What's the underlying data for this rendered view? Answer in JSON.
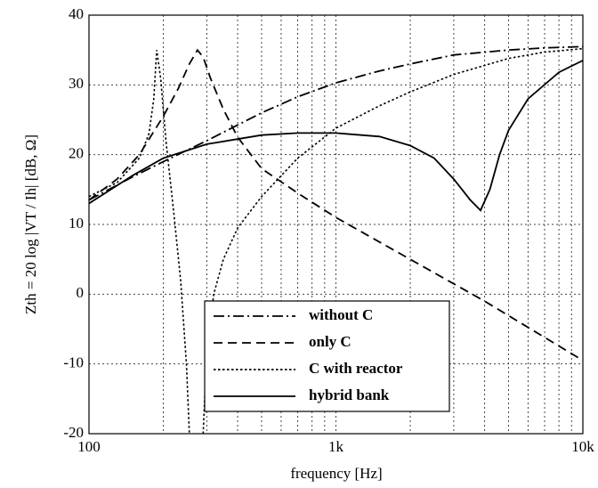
{
  "chart_data": {
    "type": "line",
    "xlabel": "frequency [Hz]",
    "ylabel": "Zth = 20 log |VT / Ih| [dB, Ω]",
    "xscale": "log",
    "xlim": [
      100,
      10000
    ],
    "ylim": [
      -20,
      40
    ],
    "xticks": [
      100,
      {
        "value": 1000,
        "label": "1k"
      },
      {
        "value": 10000,
        "label": "10k"
      }
    ],
    "xminorticks": [
      200,
      300,
      400,
      500,
      600,
      700,
      800,
      900,
      2000,
      3000,
      4000,
      5000,
      6000,
      7000,
      8000,
      9000
    ],
    "yticks": [
      -20,
      -10,
      0,
      10,
      20,
      30,
      40
    ],
    "grid": true,
    "legend_loc": "lower center",
    "series": [
      {
        "name": "without C",
        "color": "#000000",
        "linestyle": "dashdot",
        "x": [
          100,
          150,
          200,
          300,
          500,
          700,
          1000,
          1500,
          2000,
          3000,
          5000,
          7000,
          10000
        ],
        "values": [
          13.5,
          16.8,
          19,
          22,
          26,
          28.3,
          30.3,
          32,
          33,
          34.3,
          35,
          35.3,
          35.5
        ]
      },
      {
        "name": "only C",
        "color": "#000000",
        "linestyle": "dashed",
        "x": [
          100,
          130,
          160,
          200,
          230,
          255,
          275,
          290,
          310,
          350,
          400,
          500,
          700,
          1000,
          2000,
          4000,
          10000
        ],
        "values": [
          13.5,
          16.5,
          20,
          25.5,
          29.5,
          33,
          35,
          34,
          31,
          26.5,
          22.5,
          18,
          14.5,
          11,
          5,
          -1,
          -9.5
        ]
      },
      {
        "name": "C with reactor",
        "color": "#000000",
        "linestyle": "dotted",
        "x": [
          100,
          130,
          160,
          175,
          183,
          188,
          195,
          205,
          220,
          235,
          248,
          255,
          260,
          290,
          300,
          320,
          350,
          400,
          500,
          700,
          1000,
          1500,
          2000,
          3000,
          5000,
          7000,
          10000
        ],
        "values": [
          14,
          16,
          19.5,
          23,
          28,
          35,
          31,
          22,
          12,
          2,
          -10,
          -20,
          null,
          -20,
          -8,
          0,
          5,
          9.5,
          14,
          19.5,
          23.8,
          27,
          29,
          31.5,
          33.8,
          34.7,
          35.2
        ]
      },
      {
        "name": "hybrid bank",
        "color": "#000000",
        "linestyle": "solid",
        "x": [
          100,
          150,
          200,
          300,
          500,
          700,
          1000,
          1500,
          2000,
          2500,
          3000,
          3500,
          3850,
          4200,
          4600,
          5000,
          6000,
          8000,
          10000
        ],
        "values": [
          13,
          17,
          19.5,
          21.5,
          22.8,
          23.1,
          23.1,
          22.6,
          21.3,
          19.5,
          16.5,
          13.5,
          12,
          15,
          20,
          23.5,
          28,
          31.8,
          33.5
        ]
      }
    ]
  }
}
